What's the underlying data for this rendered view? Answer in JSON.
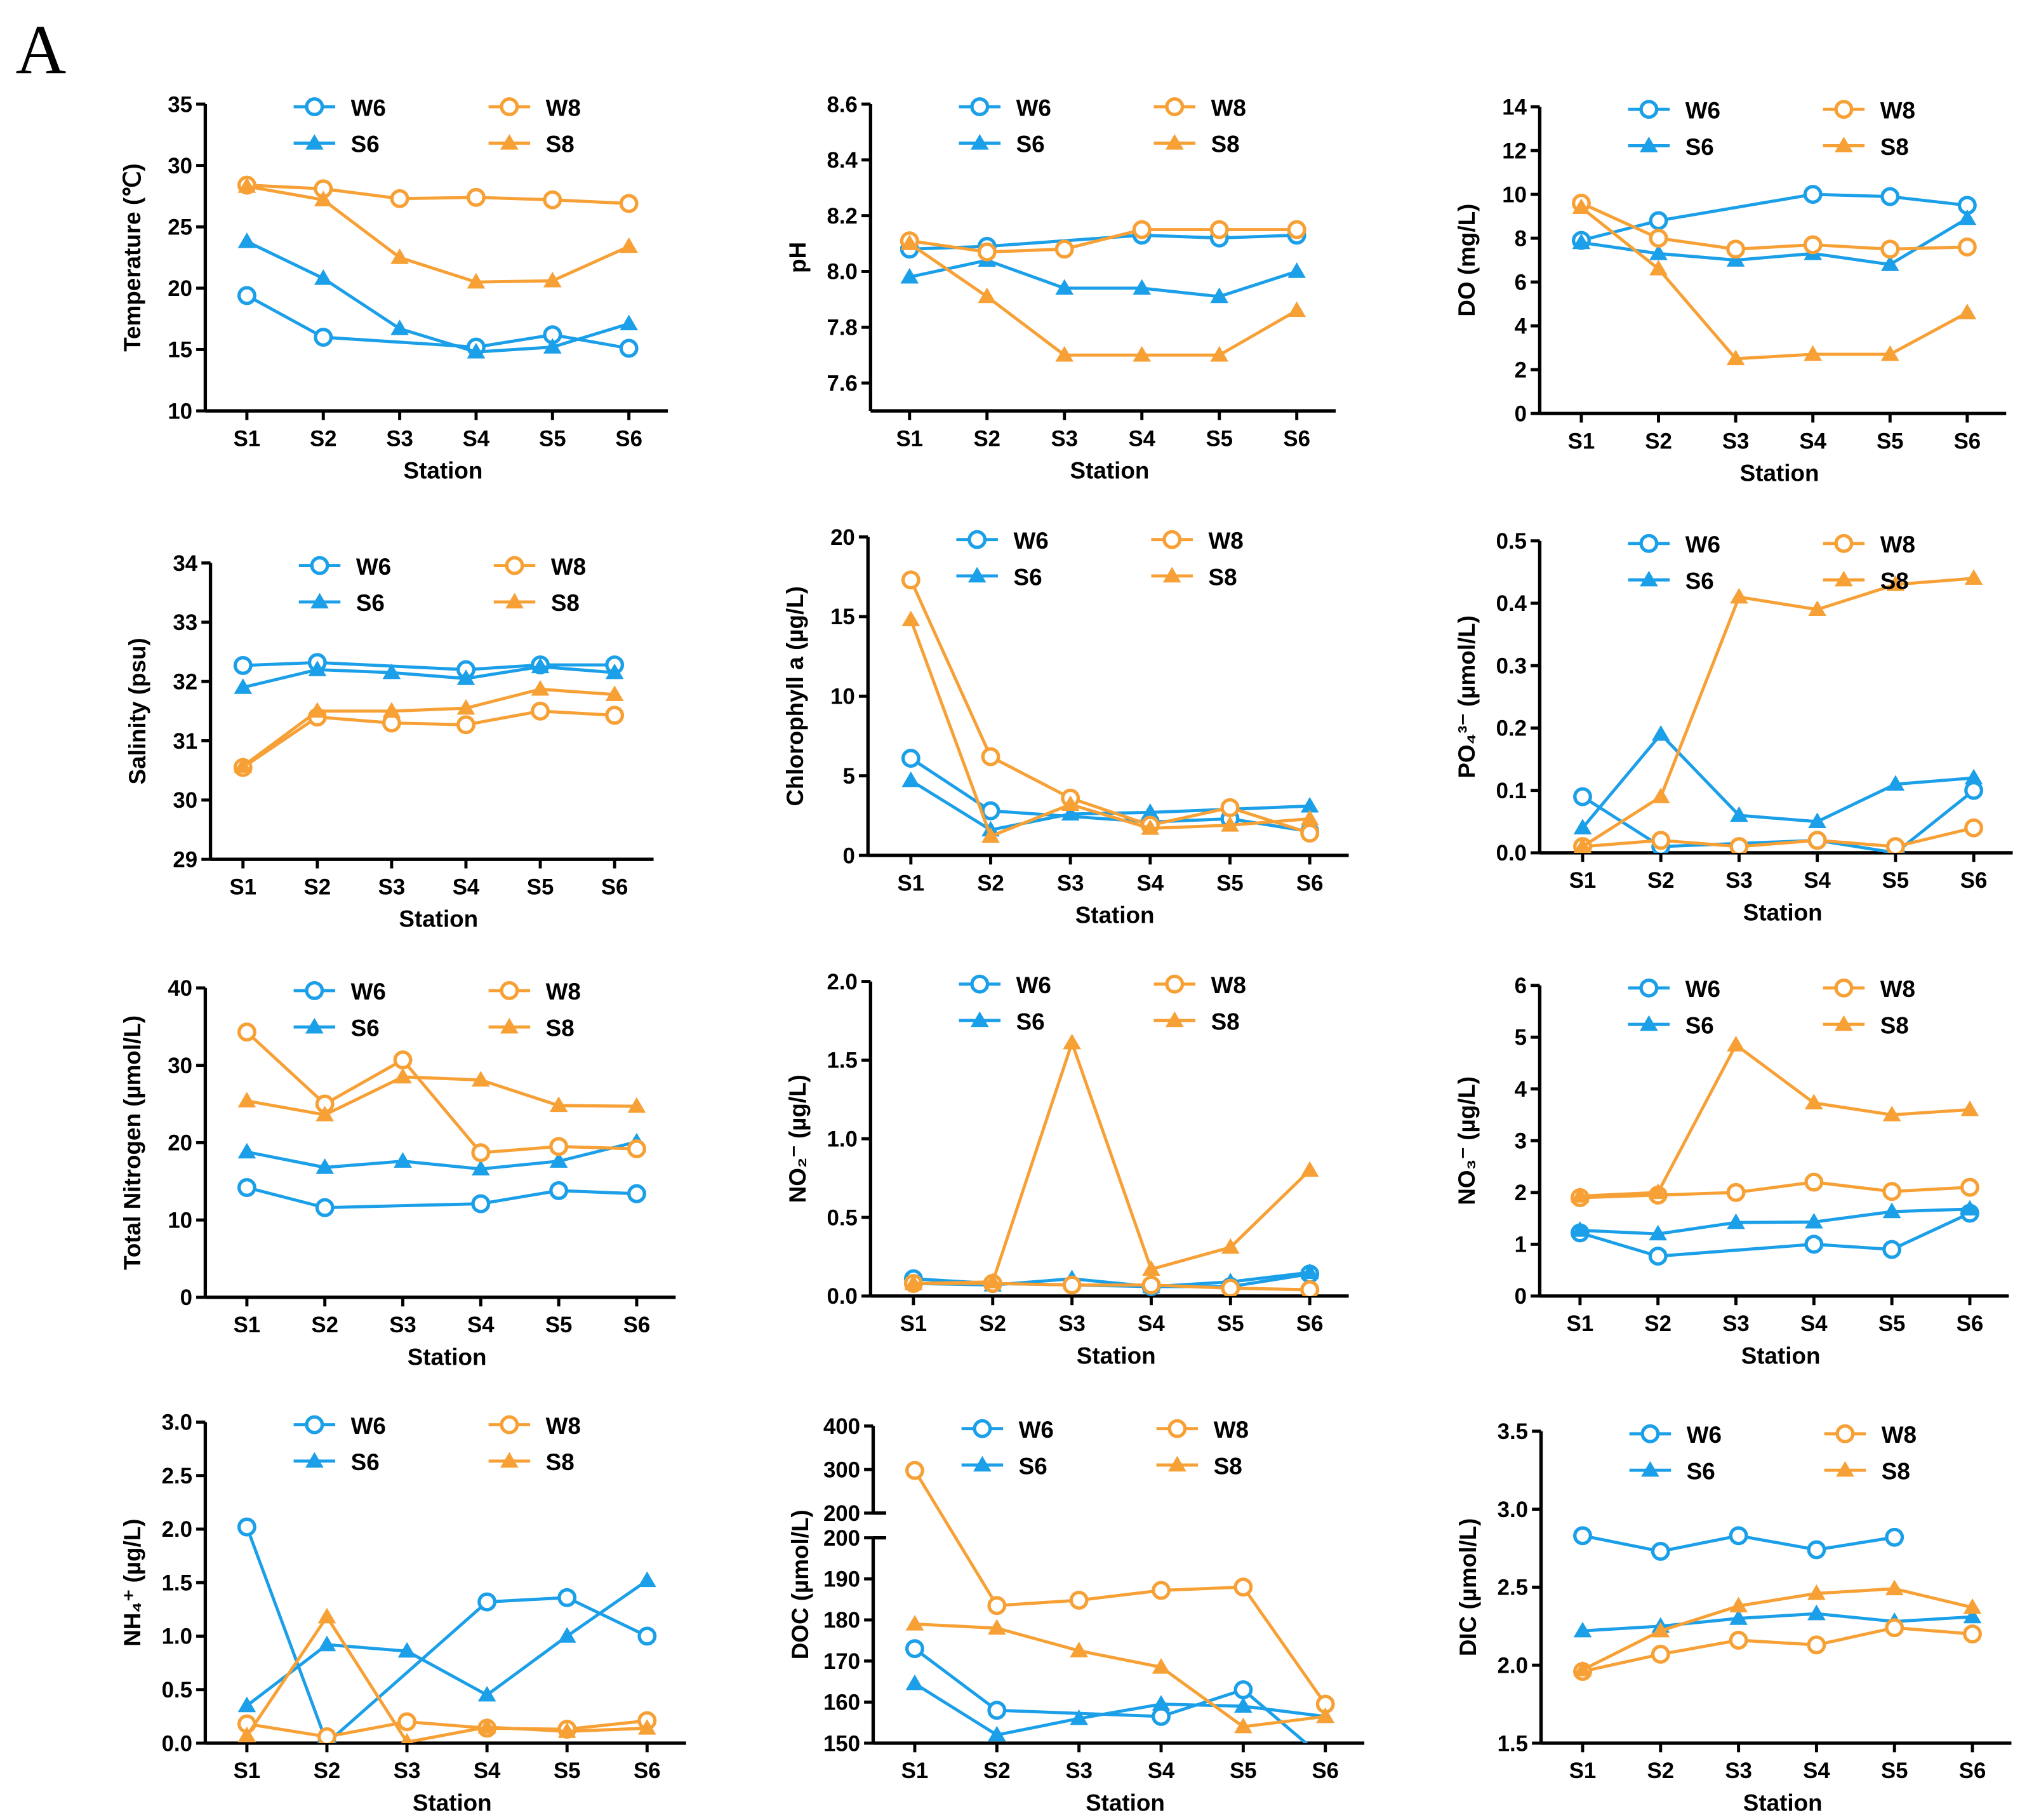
{
  "panel_label": "A",
  "colors": {
    "winter": "#1a9fe8",
    "summer": "#f7a035",
    "axis": "#000000"
  },
  "chart_data": [
    {
      "type": "line",
      "id": "temperature",
      "ylabel": "Temperature (℃)",
      "xlabel": "Station",
      "categories": [
        "S1",
        "S2",
        "S3",
        "S4",
        "S5",
        "S6"
      ],
      "ylim": [
        10,
        35
      ],
      "yticks": [
        "10",
        "15",
        "20",
        "25",
        "30",
        "35"
      ],
      "series": [
        {
          "name": "W6",
          "values": [
            19.4,
            16.0,
            null,
            15.2,
            16.2,
            15.1
          ]
        },
        {
          "name": "S6",
          "values": [
            23.8,
            20.8,
            16.7,
            14.8,
            15.2,
            17.1
          ]
        },
        {
          "name": "W8",
          "values": [
            28.4,
            28.1,
            27.3,
            27.4,
            27.2,
            26.9
          ]
        },
        {
          "name": "S8",
          "values": [
            28.3,
            27.2,
            22.5,
            20.5,
            20.6,
            23.4
          ]
        }
      ]
    },
    {
      "type": "line",
      "id": "ph",
      "ylabel": "pH",
      "xlabel": "Station",
      "categories": [
        "S1",
        "S2",
        "S3",
        "S4",
        "S5",
        "S6"
      ],
      "ylim": [
        7.5,
        8.6
      ],
      "yticks": [
        "7.6",
        "7.8",
        "8.0",
        "8.2",
        "8.4",
        "8.6"
      ],
      "series": [
        {
          "name": "W6",
          "values": [
            8.08,
            8.09,
            null,
            8.13,
            8.12,
            8.13
          ]
        },
        {
          "name": "S6",
          "values": [
            7.98,
            8.04,
            7.94,
            7.94,
            7.91,
            8.0
          ]
        },
        {
          "name": "W8",
          "values": [
            8.11,
            8.07,
            8.08,
            8.15,
            8.15,
            8.15
          ]
        },
        {
          "name": "S8",
          "values": [
            8.1,
            7.91,
            7.7,
            7.7,
            7.7,
            7.86
          ]
        }
      ]
    },
    {
      "type": "line",
      "id": "do",
      "ylabel": "DO (mg/L)",
      "xlabel": "Station",
      "categories": [
        "S1",
        "S2",
        "S3",
        "S4",
        "S5",
        "S6"
      ],
      "ylim": [
        0,
        14
      ],
      "yticks": [
        "0",
        "2",
        "4",
        "6",
        "8",
        "10",
        "12",
        "14"
      ],
      "series": [
        {
          "name": "W6",
          "values": [
            7.9,
            8.8,
            null,
            10.0,
            9.9,
            9.5
          ]
        },
        {
          "name": "S6",
          "values": [
            7.8,
            7.3,
            7.0,
            7.3,
            6.8,
            8.9
          ]
        },
        {
          "name": "W8",
          "values": [
            9.6,
            8.0,
            7.5,
            7.7,
            7.5,
            7.6
          ]
        },
        {
          "name": "S8",
          "values": [
            9.4,
            6.6,
            2.5,
            2.7,
            2.7,
            4.6
          ]
        }
      ]
    },
    {
      "type": "line",
      "id": "salinity",
      "ylabel": "Salinity (psu)",
      "xlabel": "Station",
      "categories": [
        "S1",
        "S2",
        "S3",
        "S4",
        "S5",
        "S6"
      ],
      "ylim": [
        29,
        34
      ],
      "yticks": [
        "29",
        "30",
        "31",
        "32",
        "33",
        "34"
      ],
      "series": [
        {
          "name": "W6",
          "values": [
            32.27,
            32.32,
            null,
            32.2,
            32.28,
            32.28
          ]
        },
        {
          "name": "S6",
          "values": [
            31.9,
            32.2,
            32.15,
            32.05,
            32.25,
            32.15
          ]
        },
        {
          "name": "W8",
          "values": [
            30.55,
            31.4,
            31.3,
            31.27,
            31.5,
            31.43
          ]
        },
        {
          "name": "S8",
          "values": [
            30.57,
            31.5,
            31.5,
            31.55,
            31.87,
            31.78
          ]
        }
      ]
    },
    {
      "type": "line",
      "id": "chlorophyll",
      "ylabel": "Chlorophyll a (µg/L)",
      "xlabel": "Station",
      "categories": [
        "S1",
        "S2",
        "S3",
        "S4",
        "S5",
        "S6"
      ],
      "ylim": [
        0,
        20
      ],
      "yticks": [
        "0",
        "5",
        "10",
        "15",
        "20"
      ],
      "series": [
        {
          "name": "W6",
          "values": [
            6.1,
            2.8,
            null,
            2.1,
            2.3,
            1.5
          ]
        },
        {
          "name": "S6",
          "values": [
            4.7,
            1.6,
            2.6,
            2.7,
            2.9,
            3.1
          ]
        },
        {
          "name": "W8",
          "values": [
            17.3,
            6.2,
            3.6,
            1.9,
            3.0,
            1.4
          ]
        },
        {
          "name": "S8",
          "values": [
            14.8,
            1.2,
            3.2,
            1.7,
            1.9,
            2.3
          ]
        }
      ]
    },
    {
      "type": "line",
      "id": "po4",
      "ylabel": "PO₄³⁻ (µmol/L)",
      "xlabel": "Station",
      "categories": [
        "S1",
        "S2",
        "S3",
        "S4",
        "S5",
        "S6"
      ],
      "ylim": [
        0,
        0.5
      ],
      "yticks": [
        "0.0",
        "0.1",
        "0.2",
        "0.3",
        "0.4",
        "0.5"
      ],
      "series": [
        {
          "name": "W6",
          "values": [
            0.09,
            0.01,
            null,
            0.02,
            0.0,
            0.1
          ]
        },
        {
          "name": "S6",
          "values": [
            0.04,
            0.19,
            0.06,
            0.05,
            0.11,
            0.12
          ]
        },
        {
          "name": "W8",
          "values": [
            0.01,
            0.02,
            0.01,
            0.02,
            0.01,
            0.04
          ]
        },
        {
          "name": "S8",
          "values": [
            0.01,
            0.09,
            0.41,
            0.39,
            0.43,
            0.44
          ]
        }
      ]
    },
    {
      "type": "line",
      "id": "total-nitrogen",
      "ylabel": "Total Nitrogen (µmol/L)",
      "xlabel": "Station",
      "categories": [
        "S1",
        "S2",
        "S3",
        "S4",
        "S5",
        "S6"
      ],
      "ylim": [
        0,
        40
      ],
      "yticks": [
        "0",
        "10",
        "20",
        "30",
        "40"
      ],
      "series": [
        {
          "name": "W6",
          "values": [
            14.2,
            11.6,
            null,
            12.1,
            13.8,
            13.4
          ]
        },
        {
          "name": "S6",
          "values": [
            18.8,
            16.8,
            17.6,
            16.6,
            17.6,
            20.1
          ]
        },
        {
          "name": "W8",
          "values": [
            34.3,
            25.0,
            30.7,
            18.7,
            19.5,
            19.2
          ]
        },
        {
          "name": "S8",
          "values": [
            25.4,
            23.6,
            28.5,
            28.1,
            24.8,
            24.7
          ]
        }
      ]
    },
    {
      "type": "line",
      "id": "no2",
      "ylabel": "NO₂⁻ (µg/L)",
      "xlabel": "Station",
      "categories": [
        "S1",
        "S2",
        "S3",
        "S4",
        "S5",
        "S6"
      ],
      "ylim": [
        0,
        2
      ],
      "yticks": [
        "0.0",
        "0.5",
        "1.0",
        "1.5",
        "2.0"
      ],
      "series": [
        {
          "name": "W6",
          "values": [
            0.11,
            0.08,
            null,
            0.06,
            0.06,
            0.14
          ]
        },
        {
          "name": "S6",
          "values": [
            0.08,
            0.07,
            0.11,
            0.06,
            0.09,
            0.15
          ]
        },
        {
          "name": "W8",
          "values": [
            0.08,
            0.08,
            0.07,
            0.07,
            0.05,
            0.04
          ]
        },
        {
          "name": "S8",
          "values": [
            0.08,
            0.09,
            1.61,
            0.17,
            0.31,
            0.8
          ]
        }
      ]
    },
    {
      "type": "line",
      "id": "no3",
      "ylabel": "NO₃⁻ (µg/L)",
      "xlabel": "Station",
      "categories": [
        "S1",
        "S2",
        "S3",
        "S4",
        "S5",
        "S6"
      ],
      "ylim": [
        0,
        6
      ],
      "yticks": [
        "0",
        "1",
        "2",
        "3",
        "4",
        "5",
        "6"
      ],
      "series": [
        {
          "name": "W6",
          "values": [
            1.22,
            0.77,
            null,
            1.0,
            0.9,
            1.6
          ]
        },
        {
          "name": "S6",
          "values": [
            1.27,
            1.2,
            1.42,
            1.43,
            1.63,
            1.68
          ]
        },
        {
          "name": "W8",
          "values": [
            1.9,
            1.95,
            2.0,
            2.2,
            2.02,
            2.1
          ]
        },
        {
          "name": "S8",
          "values": [
            1.93,
            2.0,
            4.85,
            3.73,
            3.5,
            3.6
          ]
        }
      ]
    },
    {
      "type": "line",
      "id": "nh4",
      "ylabel": "NH₄⁺ (µg/L)",
      "xlabel": "Station",
      "categories": [
        "S1",
        "S2",
        "S3",
        "S4",
        "S5",
        "S6"
      ],
      "ylim": [
        0,
        3
      ],
      "yticks": [
        "0.0",
        "0.5",
        "1.0",
        "1.5",
        "2.0",
        "2.5",
        "3.0"
      ],
      "series": [
        {
          "name": "W6",
          "values": [
            2.02,
            0.0,
            null,
            1.32,
            1.36,
            1.0
          ]
        },
        {
          "name": "S6",
          "values": [
            0.35,
            0.92,
            0.86,
            0.45,
            1.0,
            1.52
          ]
        },
        {
          "name": "W8",
          "values": [
            0.18,
            0.06,
            0.2,
            0.14,
            0.13,
            0.21
          ]
        },
        {
          "name": "S8",
          "values": [
            0.07,
            1.18,
            0.01,
            0.15,
            0.11,
            0.14
          ]
        }
      ]
    },
    {
      "type": "line",
      "id": "doc",
      "ylabel": "DOC (µmol/L)",
      "xlabel": "Station",
      "categories": [
        "S1",
        "S2",
        "S3",
        "S4",
        "S5",
        "S6"
      ],
      "ylim": [
        150,
        400
      ],
      "axis_break": [
        200,
        200
      ],
      "yticks": [
        "150",
        "160",
        "170",
        "180",
        "190",
        "200",
        "200",
        "300",
        "400"
      ],
      "series": [
        {
          "name": "W6",
          "values": [
            173,
            158,
            null,
            156.5,
            163,
            146
          ]
        },
        {
          "name": "S6",
          "values": [
            164.5,
            152,
            156,
            159.5,
            159,
            156.5
          ]
        },
        {
          "name": "W8",
          "values": [
            298,
            183.5,
            184.8,
            187.2,
            188,
            159.5
          ]
        },
        {
          "name": "S8",
          "values": [
            179,
            178,
            172.5,
            168.5,
            154,
            156.5
          ]
        }
      ]
    },
    {
      "type": "line",
      "id": "dic",
      "ylabel": "DIC (µmol/L)",
      "xlabel": "Station",
      "categories": [
        "S1",
        "S2",
        "S3",
        "S4",
        "S5",
        "S6"
      ],
      "ylim": [
        1.5,
        3.5
      ],
      "yticks": [
        "1.5",
        "2.0",
        "2.5",
        "3.0",
        "3.5"
      ],
      "series": [
        {
          "name": "W6",
          "values": [
            2.83,
            2.73,
            2.83,
            2.74,
            2.82,
            null
          ]
        },
        {
          "name": "S6",
          "values": [
            2.22,
            2.25,
            2.3,
            2.33,
            2.28,
            2.31
          ]
        },
        {
          "name": "W8",
          "values": [
            1.96,
            2.07,
            2.16,
            2.13,
            2.24,
            2.2
          ]
        },
        {
          "name": "S8",
          "values": [
            1.97,
            2.22,
            2.38,
            2.46,
            2.49,
            2.37
          ]
        }
      ]
    }
  ]
}
